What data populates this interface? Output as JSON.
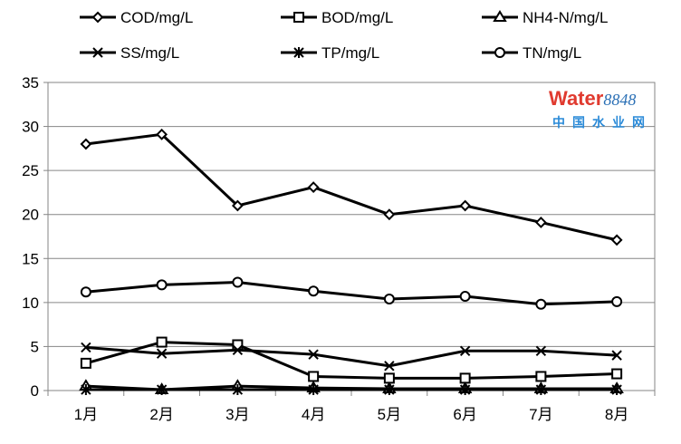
{
  "chart_data": {
    "type": "line",
    "categories": [
      "1月",
      "2月",
      "3月",
      "4月",
      "5月",
      "6月",
      "7月",
      "8月"
    ],
    "ylim": [
      0,
      35
    ],
    "yticks": [
      0,
      5,
      10,
      15,
      20,
      25,
      30,
      35
    ],
    "grid": true,
    "legend_position": "top",
    "series": [
      {
        "name": "COD/mg/L",
        "marker": "diamond",
        "values": [
          28.0,
          29.1,
          21.0,
          23.1,
          20.0,
          21.0,
          19.1,
          17.1
        ]
      },
      {
        "name": "BOD/mg/L",
        "marker": "square",
        "values": [
          3.1,
          5.5,
          5.2,
          1.6,
          1.4,
          1.4,
          1.6,
          1.9
        ]
      },
      {
        "name": "NH4-N/mg/L",
        "marker": "triangle",
        "values": [
          0.5,
          0.1,
          0.5,
          0.3,
          0.2,
          0.2,
          0.2,
          0.2
        ]
      },
      {
        "name": "SS/mg/L",
        "marker": "x",
        "values": [
          4.9,
          4.2,
          4.6,
          4.1,
          2.8,
          4.5,
          4.5,
          4.0
        ]
      },
      {
        "name": "TP/mg/L",
        "marker": "star",
        "values": [
          0.1,
          0.1,
          0.1,
          0.1,
          0.1,
          0.1,
          0.1,
          0.1
        ]
      },
      {
        "name": "TN/mg/L",
        "marker": "circle",
        "values": [
          11.2,
          12.0,
          12.3,
          11.3,
          10.4,
          10.7,
          9.8,
          10.1
        ]
      }
    ],
    "line_color": "#000000",
    "grid_color": "#868686"
  },
  "watermark": {
    "brand": "Water",
    "number": "8848",
    "cn": "中国水业网"
  }
}
